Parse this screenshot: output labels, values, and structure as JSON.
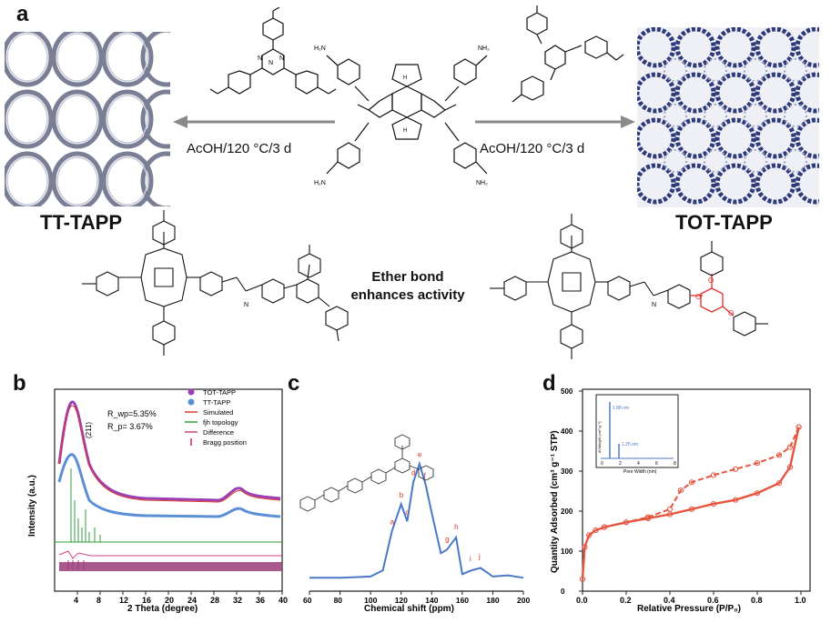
{
  "panels": {
    "a": "a",
    "b": "b",
    "c": "c",
    "d": "d"
  },
  "scheme": {
    "left_condition": "AcOH/120 °C/3 d",
    "right_condition": "AcOH/120 °C/3 d",
    "left_product": "TT-TAPP",
    "right_product": "TOT-TAPP",
    "ether_line1": "Ether bond",
    "ether_line2": "enhances activity"
  },
  "chart_data": [
    {
      "type": "line",
      "panel": "b",
      "xlabel": "2 Theta (degree)",
      "ylabel": "Intensity (a.u.)",
      "xlim": [
        0,
        40
      ],
      "xticks": [
        4,
        8,
        12,
        16,
        20,
        24,
        28,
        32,
        36,
        40
      ],
      "annotations": [
        "R_wp=5.35%",
        "R_p= 3.67%",
        "(211)"
      ],
      "legend": [
        "TOT-TAPP",
        "TT-TAPP",
        "Simulated",
        "fjh topology",
        "Difference",
        "Bragg position"
      ],
      "colors": {
        "TOT-TAPP": "#9a3fb4",
        "TT-TAPP": "#5a8fd6",
        "Simulated": "#e03a2a",
        "fjh topology": "#2e9e3a",
        "Difference": "#d04080",
        "Bragg position": "#c03070"
      }
    },
    {
      "type": "line",
      "panel": "c",
      "xlabel": "Chemical shift (ppm)",
      "xlim": [
        60,
        200
      ],
      "xticks": [
        60,
        80,
        100,
        120,
        140,
        160,
        180,
        200
      ],
      "series": [
        {
          "values_x": [
            60,
            80,
            100,
            108,
            114,
            120,
            124,
            128,
            132,
            136,
            140,
            146,
            150,
            156,
            160,
            166,
            172,
            180,
            190,
            200
          ],
          "values_y": [
            2,
            2,
            3,
            8,
            40,
            62,
            48,
            80,
            95,
            78,
            55,
            22,
            25,
            35,
            5,
            8,
            10,
            3,
            4,
            2
          ]
        }
      ],
      "peak_labels": [
        "a",
        "b",
        "c",
        "d",
        "e",
        "f",
        "g",
        "h",
        "i",
        "j"
      ],
      "color": "#4a78c8"
    },
    {
      "type": "line",
      "panel": "d",
      "xlabel": "Relative Pressure (P/P₀)",
      "ylabel": "Quantity Adsorbed (cm³ g⁻¹ STP)",
      "xlim": [
        0.0,
        1.0
      ],
      "ylim": [
        0,
        500
      ],
      "xticks": [
        "0.0",
        "0.2",
        "0.4",
        "0.6",
        "0.8",
        "1.0"
      ],
      "yticks": [
        "0",
        "100",
        "200",
        "300",
        "400",
        "500"
      ],
      "series": [
        {
          "x": [
            0.0,
            0.01,
            0.03,
            0.06,
            0.1,
            0.2,
            0.3,
            0.4,
            0.5,
            0.6,
            0.7,
            0.8,
            0.9,
            0.95,
            0.99
          ],
          "y": [
            30,
            110,
            140,
            152,
            160,
            172,
            182,
            192,
            205,
            218,
            228,
            245,
            270,
            310,
            410
          ]
        },
        {
          "x": [
            0.99,
            0.95,
            0.9,
            0.8,
            0.7,
            0.6,
            0.5,
            0.45,
            0.4,
            0.3,
            0.2,
            0.1
          ],
          "y": [
            410,
            360,
            340,
            320,
            305,
            290,
            272,
            252,
            205,
            185,
            172,
            160
          ]
        }
      ],
      "inset": {
        "xlabel": "Pore Width (nm)",
        "ylabel": "dV/dlogW (cm³ g⁻¹)",
        "peaks": [
          "1.88 nm",
          "1.25 nm"
        ],
        "xticks": [
          "0",
          "2",
          "4",
          "6",
          "8"
        ]
      },
      "color": "#e8553e"
    }
  ]
}
